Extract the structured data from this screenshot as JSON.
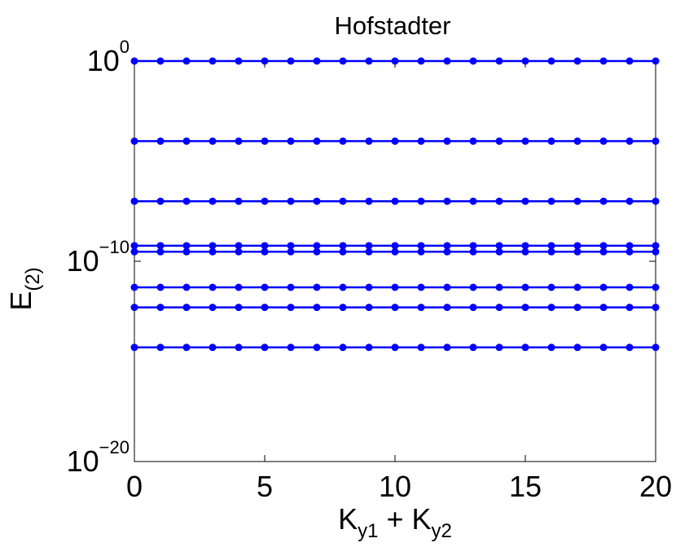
{
  "chart_data": {
    "type": "line",
    "title": "Hofstadter",
    "x_label": [
      "K",
      "y1",
      " + K",
      "y2"
    ],
    "y_label": [
      "E",
      "(2)"
    ],
    "x": [
      0,
      1,
      2,
      3,
      4,
      5,
      6,
      7,
      8,
      9,
      10,
      11,
      12,
      13,
      14,
      15,
      16,
      17,
      18,
      19,
      20
    ],
    "xlim": [
      0,
      20
    ],
    "xticks": [
      0,
      5,
      10,
      15,
      20
    ],
    "ylim": [
      1e-20,
      1
    ],
    "yticks": [
      {
        "value": 1e-20,
        "label": "10",
        "label_sup": "−20"
      },
      {
        "value": 1e-10,
        "label": "10",
        "label_sup": "−10"
      },
      {
        "value": 1,
        "label": "10",
        "label_sup": "0"
      }
    ],
    "log_y": true,
    "series": [
      {
        "color": "#0000ff",
        "values": [
          1,
          1,
          1,
          1,
          1,
          1,
          1,
          1,
          1,
          1,
          1,
          1,
          1,
          1,
          1,
          1,
          1,
          1,
          1,
          1,
          1
        ]
      },
      {
        "color": "#0000ff",
        "values": [
          0.0001,
          0.0001,
          0.0001,
          0.0001,
          0.0001,
          0.0001,
          0.0001,
          0.0001,
          0.0001,
          0.0001,
          0.0001,
          0.0001,
          0.0001,
          0.0001,
          0.0001,
          0.0001,
          0.0001,
          0.0001,
          0.0001,
          0.0001,
          0.0001
        ]
      },
      {
        "color": "#0000ff",
        "values": [
          1e-07,
          1e-07,
          1e-07,
          1e-07,
          1e-07,
          1e-07,
          1e-07,
          1e-07,
          1e-07,
          1e-07,
          1e-07,
          1e-07,
          1e-07,
          1e-07,
          1e-07,
          1e-07,
          1e-07,
          1e-07,
          1e-07,
          1e-07,
          1e-07
        ]
      },
      {
        "color": "#0000ff",
        "values": [
          6e-10,
          6e-10,
          6e-10,
          6e-10,
          6e-10,
          6e-10,
          6e-10,
          6e-10,
          6e-10,
          6e-10,
          6e-10,
          6e-10,
          6e-10,
          6e-10,
          6e-10,
          6e-10,
          6e-10,
          6e-10,
          6e-10,
          6e-10,
          6e-10
        ]
      },
      {
        "color": "#0000ff",
        "values": [
          3e-10,
          3e-10,
          3e-10,
          3e-10,
          3e-10,
          3e-10,
          3e-10,
          3e-10,
          3e-10,
          3e-10,
          3e-10,
          3e-10,
          3e-10,
          3e-10,
          3e-10,
          3e-10,
          3e-10,
          3e-10,
          3e-10,
          3e-10,
          3e-10
        ]
      },
      {
        "color": "#0000ff",
        "values": [
          5e-12,
          5e-12,
          5e-12,
          5e-12,
          5e-12,
          5e-12,
          5e-12,
          5e-12,
          5e-12,
          5e-12,
          5e-12,
          5e-12,
          5e-12,
          5e-12,
          5e-12,
          5e-12,
          5e-12,
          5e-12,
          5e-12,
          5e-12,
          5e-12
        ]
      },
      {
        "color": "#0000ff",
        "values": [
          5e-13,
          5e-13,
          5e-13,
          5e-13,
          5e-13,
          5e-13,
          5e-13,
          5e-13,
          5e-13,
          5e-13,
          5e-13,
          5e-13,
          5e-13,
          5e-13,
          5e-13,
          5e-13,
          5e-13,
          5e-13,
          5e-13,
          5e-13,
          5e-13
        ]
      },
      {
        "color": "#0000ff",
        "values": [
          5e-15,
          5e-15,
          5e-15,
          5e-15,
          5e-15,
          5e-15,
          5e-15,
          5e-15,
          5e-15,
          5e-15,
          5e-15,
          5e-15,
          5e-15,
          5e-15,
          5e-15,
          5e-15,
          5e-15,
          5e-15,
          5e-15,
          5e-15,
          5e-15
        ]
      }
    ]
  }
}
